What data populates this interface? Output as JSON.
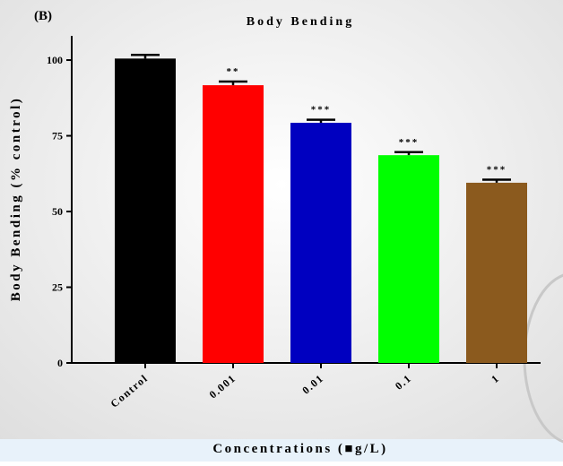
{
  "chart_data": {
    "type": "bar",
    "panel_label": "(B)",
    "title": "Body Bending",
    "y_label": "Body Bending (% control)",
    "x_label": "Concentrations (■g/L)",
    "categories": [
      "Control",
      "0.001",
      "0.01",
      "0.1",
      "1"
    ],
    "values": [
      100.5,
      91.7,
      79.3,
      68.6,
      59.5
    ],
    "errors": [
      1.2,
      1.2,
      1.0,
      1.0,
      1.0
    ],
    "significance": [
      null,
      "**",
      "***",
      "***",
      "***"
    ],
    "colors": [
      "#000000",
      "#ff0000",
      "#0000c0",
      "#00ff00",
      "#8b5a1e"
    ],
    "ylim": [
      0,
      108
    ],
    "yticks": [
      0,
      25,
      50,
      75,
      100
    ]
  }
}
